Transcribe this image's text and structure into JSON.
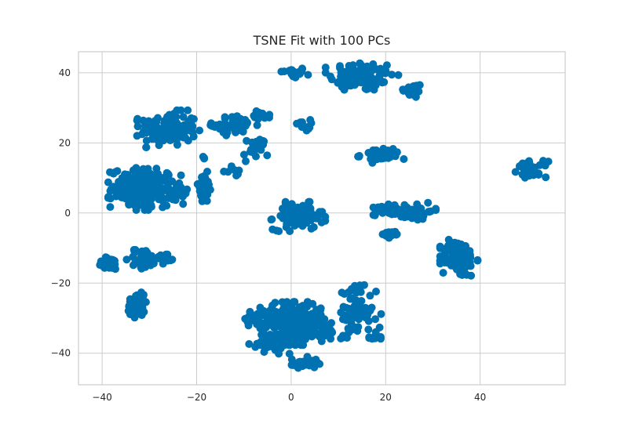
{
  "chart_data": {
    "type": "scatter",
    "title": "TSNE Fit with 100 PCs",
    "xlabel": "",
    "ylabel": "",
    "xlim": [
      -45,
      58
    ],
    "ylim": [
      -49,
      46
    ],
    "xticks": [
      -40,
      -20,
      0,
      20,
      40
    ],
    "yticks": [
      -40,
      -20,
      0,
      20,
      40
    ],
    "grid": true,
    "legend": "none",
    "colors": {
      "point": "#0072b2",
      "grid": "#cccccc",
      "spine": "#cccccc",
      "text": "#262626"
    },
    "clusters": [
      {
        "cx": 0.5,
        "cy": 40,
        "sx": 1.4,
        "sy": 0.8,
        "n": 25
      },
      {
        "cx": 15,
        "cy": 39,
        "sx": 3.5,
        "sy": 2.2,
        "n": 95
      },
      {
        "cx": 25.5,
        "cy": 35,
        "sx": 1.2,
        "sy": 1.1,
        "n": 25
      },
      {
        "cx": -26,
        "cy": 24,
        "sx": 3,
        "sy": 2.4,
        "n": 130
      },
      {
        "cx": -12,
        "cy": 25,
        "sx": 2.3,
        "sy": 1.3,
        "n": 55
      },
      {
        "cx": -6,
        "cy": 28,
        "sx": 0.9,
        "sy": 0.6,
        "n": 15
      },
      {
        "cx": 2.5,
        "cy": 25,
        "sx": 0.8,
        "sy": 0.8,
        "n": 12
      },
      {
        "cx": -7.5,
        "cy": 18,
        "sx": 1.3,
        "sy": 1.8,
        "n": 25
      },
      {
        "cx": -12.5,
        "cy": 12,
        "sx": 1.0,
        "sy": 0.6,
        "n": 8
      },
      {
        "cx": 19,
        "cy": 16.5,
        "sx": 2.2,
        "sy": 1.0,
        "n": 45
      },
      {
        "cx": 51,
        "cy": 12.5,
        "sx": 1.6,
        "sy": 1.1,
        "n": 35
      },
      {
        "cx": -31,
        "cy": 7,
        "sx": 3.5,
        "sy": 2.8,
        "n": 200
      },
      {
        "cx": -24.5,
        "cy": 5,
        "sx": 1.2,
        "sy": 1.1,
        "n": 25
      },
      {
        "cx": -18.5,
        "cy": 7,
        "sx": 1.0,
        "sy": 2.2,
        "n": 35
      },
      {
        "cx": -18.5,
        "cy": 16,
        "sx": 0.3,
        "sy": 0.3,
        "n": 3
      },
      {
        "cx": 1.5,
        "cy": -1,
        "sx": 2.6,
        "sy": 1.9,
        "n": 90
      },
      {
        "cx": 24,
        "cy": 0.5,
        "sx": 3,
        "sy": 1.1,
        "n": 80
      },
      {
        "cx": 21.5,
        "cy": -6,
        "sx": 1.1,
        "sy": 0.5,
        "n": 15
      },
      {
        "cx": 35.5,
        "cy": -13,
        "sx": 1.8,
        "sy": 2.6,
        "n": 110
      },
      {
        "cx": -38.5,
        "cy": -14.5,
        "sx": 1.2,
        "sy": 0.9,
        "n": 35
      },
      {
        "cx": -31.5,
        "cy": -13,
        "sx": 1.5,
        "sy": 1.6,
        "n": 30
      },
      {
        "cx": -26.5,
        "cy": -13,
        "sx": 1.0,
        "sy": 0.7,
        "n": 15
      },
      {
        "cx": -32.5,
        "cy": -26,
        "sx": 1.1,
        "sy": 2.0,
        "n": 45
      },
      {
        "cx": 0,
        "cy": -31.5,
        "sx": 3.2,
        "sy": 2.8,
        "n": 280
      },
      {
        "cx": -7.5,
        "cy": -30,
        "sx": 1.1,
        "sy": 1.2,
        "n": 20
      },
      {
        "cx": -4.5,
        "cy": -37.5,
        "sx": 2.0,
        "sy": 1.2,
        "n": 35
      },
      {
        "cx": 7,
        "cy": -34,
        "sx": 2.5,
        "sy": 1.2,
        "n": 35
      },
      {
        "cx": 2.5,
        "cy": -43,
        "sx": 1.6,
        "sy": 0.9,
        "n": 30
      },
      {
        "cx": 14.5,
        "cy": -29,
        "sx": 2.3,
        "sy": 3.0,
        "n": 60
      },
      {
        "cx": 13.5,
        "cy": -22,
        "sx": 1.2,
        "sy": 0.8,
        "n": 10
      },
      {
        "cx": 18,
        "cy": -35.5,
        "sx": 0.8,
        "sy": 0.6,
        "n": 8
      },
      {
        "cx": 11,
        "cy": -23,
        "sx": 0.2,
        "sy": 0.2,
        "n": 2
      }
    ]
  }
}
